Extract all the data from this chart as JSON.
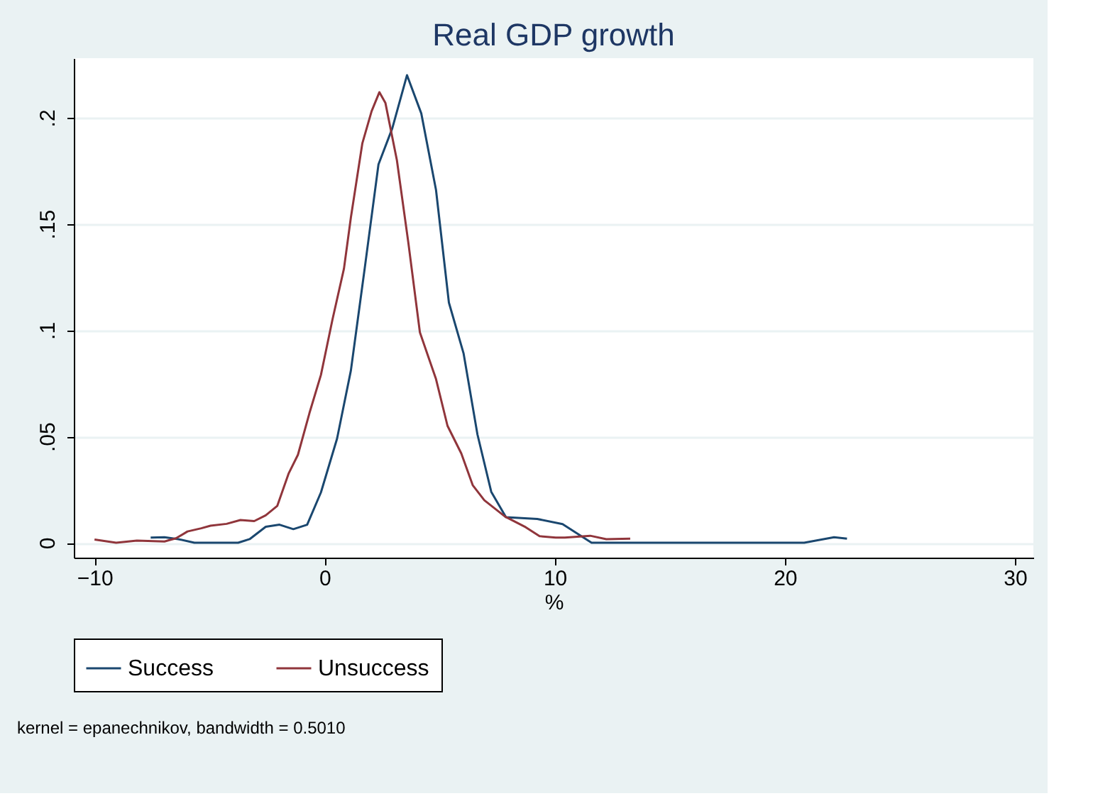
{
  "chart_data": {
    "type": "line",
    "title": "Real GDP growth",
    "xlabel": "%",
    "xlim": [
      -10.9,
      30.8
    ],
    "xticks": [
      -10,
      0,
      10,
      20,
      30
    ],
    "ylim": [
      -0.007,
      0.228
    ],
    "yticks": [
      {
        "value": 0,
        "label": "0"
      },
      {
        "value": 0.05,
        "label": ".05"
      },
      {
        "value": 0.1,
        "label": ".1"
      },
      {
        "value": 0.15,
        "label": ".15"
      },
      {
        "value": 0.2,
        "label": ".2"
      }
    ],
    "grid": "y",
    "legend": "bottom",
    "line_style": "solid",
    "annotations": [
      "kernel = epanechnikov, bandwidth = 0.5010"
    ],
    "series": [
      {
        "name": "Success",
        "color": "#1a476f",
        "x": [
          -7.56,
          -6.96,
          -6.36,
          -5.66,
          -3.76,
          -3.26,
          -2.56,
          -1.96,
          -1.36,
          -0.76,
          -0.16,
          0.54,
          1.14,
          1.74,
          2.34,
          2.94,
          3.58,
          4.2,
          4.84,
          5.4,
          6.04,
          6.64,
          7.24,
          7.88,
          9.24,
          10.34,
          11.6,
          20.84,
          22.14,
          22.7
        ],
        "values": [
          0.0024,
          0.0026,
          0.0017,
          0,
          0,
          0.0017,
          0.0075,
          0.0085,
          0.0064,
          0.0085,
          0.0237,
          0.049,
          0.081,
          0.129,
          0.178,
          0.195,
          0.22,
          0.202,
          0.166,
          0.113,
          0.089,
          0.051,
          0.024,
          0.012,
          0.0112,
          0.0088,
          0,
          0,
          0.0026,
          0.0019
        ]
      },
      {
        "name": "Unsuccess",
        "color": "#90353b",
        "x": [
          -10.0,
          -9.06,
          -8.16,
          -6.96,
          -6.46,
          -5.96,
          -5.36,
          -4.96,
          -4.26,
          -3.66,
          -3.06,
          -2.56,
          -2.06,
          -1.56,
          -1.16,
          -0.66,
          -0.16,
          0.34,
          0.84,
          1.14,
          1.64,
          2.04,
          2.38,
          2.64,
          3.14,
          3.64,
          4.14,
          4.84,
          5.34,
          5.94,
          6.44,
          6.94,
          7.84,
          8.74,
          9.34,
          10.04,
          10.44,
          11.54,
          12.24,
          13.28
        ],
        "values": [
          0.0015,
          0,
          0.001,
          0.0006,
          0.0021,
          0.0053,
          0.0068,
          0.008,
          0.0089,
          0.0107,
          0.0102,
          0.0129,
          0.0173,
          0.0327,
          0.0414,
          0.061,
          0.079,
          0.105,
          0.129,
          0.153,
          0.188,
          0.203,
          0.212,
          0.207,
          0.18,
          0.141,
          0.099,
          0.077,
          0.055,
          0.042,
          0.027,
          0.02,
          0.0123,
          0.0073,
          0.0031,
          0.0024,
          0.0024,
          0.0033,
          0.0017,
          0.0019
        ]
      }
    ]
  }
}
